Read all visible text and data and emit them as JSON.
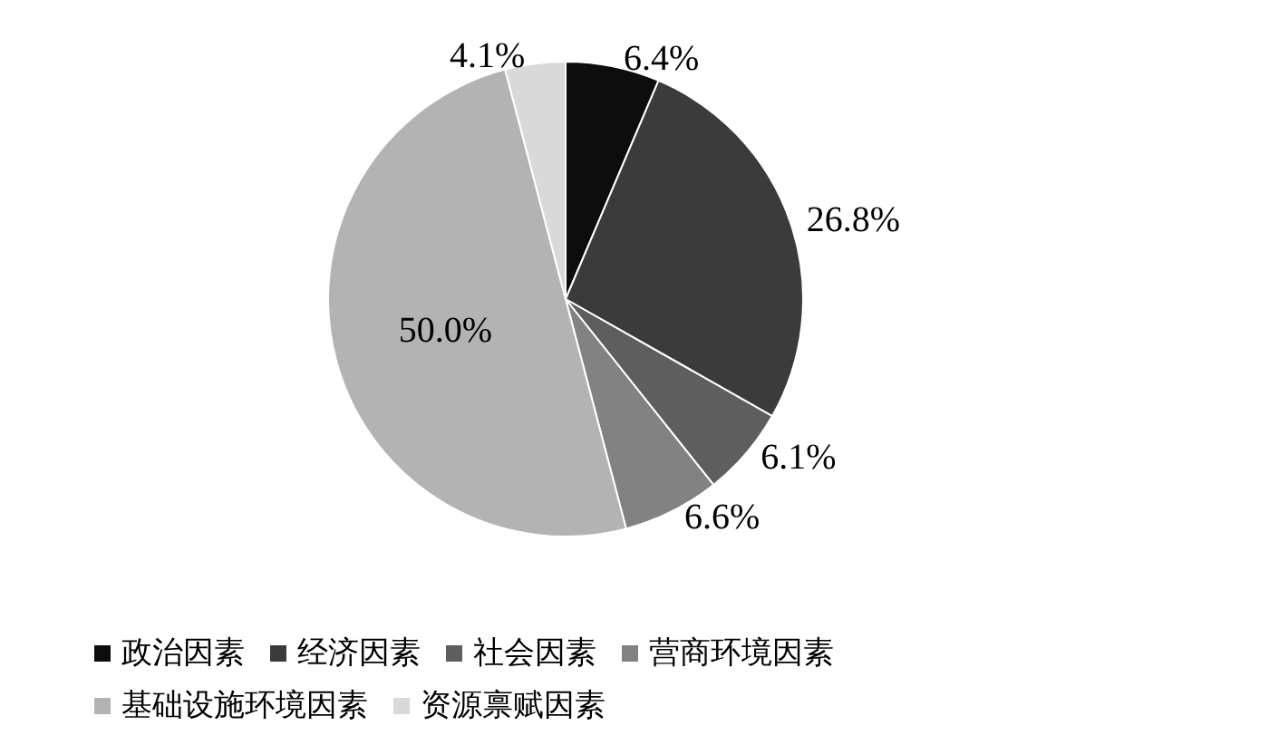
{
  "chart_data": {
    "type": "pie",
    "categories": [
      "政治因素",
      "经济因素",
      "社会因素",
      "营商环境因素",
      "基础设施环境因素",
      "资源禀赋因素"
    ],
    "values": [
      6.4,
      26.8,
      6.1,
      6.6,
      50.0,
      4.1
    ],
    "colors": [
      "#0d0d0d",
      "#3b3b3b",
      "#5e5e5e",
      "#828282",
      "#b3b3b3",
      "#d9d9d9"
    ],
    "value_labels": [
      "6.4%",
      "26.8%",
      "6.1%",
      "6.6%",
      "50.0%",
      "4.1%"
    ],
    "legend": "bottom"
  }
}
